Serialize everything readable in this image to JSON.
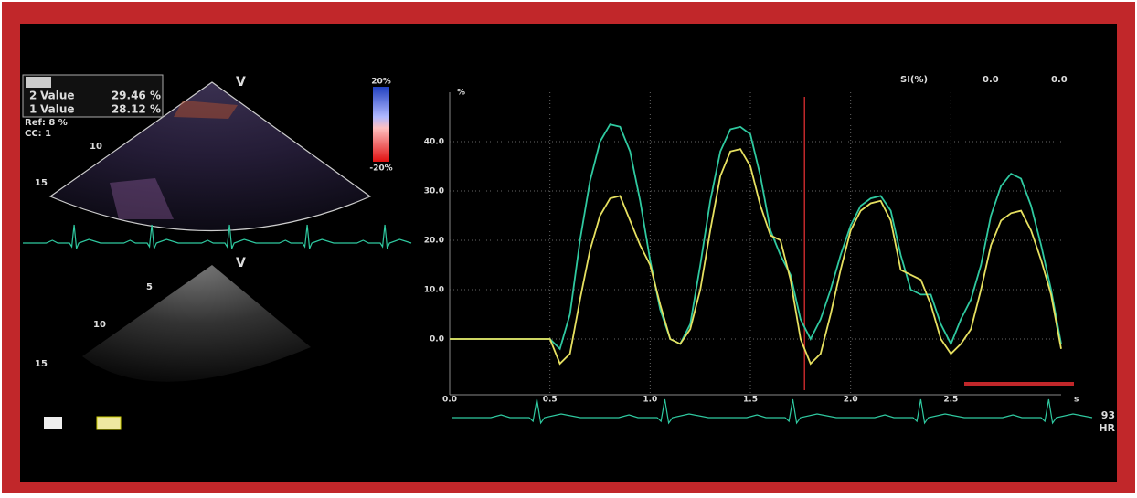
{
  "chart_data": {
    "type": "line",
    "y_label": "%",
    "x_label": "s",
    "legend_title": "SI(%)",
    "readouts": [
      "0.0",
      "0.0"
    ],
    "x": [
      0,
      0.5,
      0.55,
      0.6,
      0.65,
      0.7,
      0.75,
      0.8,
      0.85,
      0.9,
      0.95,
      1.0,
      1.05,
      1.1,
      1.15,
      1.2,
      1.25,
      1.3,
      1.35,
      1.4,
      1.45,
      1.5,
      1.55,
      1.6,
      1.65,
      1.7,
      1.75,
      1.8,
      1.85,
      1.9,
      1.95,
      2.0,
      2.05,
      2.1,
      2.15,
      2.2,
      2.25,
      2.3,
      2.35,
      2.4,
      2.45,
      2.5,
      2.55,
      2.6,
      2.65,
      2.7,
      2.75,
      2.8,
      2.85,
      2.9,
      2.95,
      3.0,
      3.05
    ],
    "series": [
      {
        "color": "#2fc9a0",
        "values": [
          0,
          0,
          -2,
          5,
          20,
          32,
          40,
          43.5,
          43,
          38,
          28,
          16,
          6,
          0,
          -1,
          3,
          15,
          28,
          38,
          42.5,
          43,
          41.5,
          33,
          22,
          17,
          13,
          4,
          0,
          4,
          10,
          17,
          23,
          27,
          28.5,
          29,
          26,
          17,
          10,
          9,
          9,
          3,
          -1,
          4,
          8,
          15,
          25,
          31,
          33.5,
          32.5,
          27,
          19,
          10,
          -1
        ]
      },
      {
        "color": "#e6e060",
        "values": [
          0,
          0,
          -5,
          -3,
          8,
          18,
          25,
          28.5,
          29,
          24,
          19,
          15,
          7,
          0,
          -1,
          2,
          10,
          22,
          33,
          38,
          38.5,
          35,
          27,
          21,
          20,
          12,
          0,
          -5,
          -3,
          5,
          14,
          22,
          26,
          27.5,
          28,
          24,
          14,
          13,
          12,
          7,
          0,
          -3,
          -1,
          2,
          10,
          19,
          24,
          25.5,
          26,
          22,
          16,
          9,
          -2
        ]
      }
    ],
    "xlim": [
      0,
      3.05
    ],
    "ylim": [
      -11.3,
      50
    ],
    "xticks": [
      {
        "value": 0,
        "label": "0.0"
      },
      {
        "value": 0.5,
        "label": "0.5"
      },
      {
        "value": 1,
        "label": "1.0"
      },
      {
        "value": 1.5,
        "label": "1.5"
      },
      {
        "value": 2,
        "label": "2.0"
      },
      {
        "value": 2.5,
        "label": "2.5"
      }
    ],
    "yticks": [
      {
        "value": 0,
        "label": "0.0"
      },
      {
        "value": 10,
        "label": "10.0"
      },
      {
        "value": 20,
        "label": "20.0"
      },
      {
        "value": 30,
        "label": "30.0"
      },
      {
        "value": 40,
        "label": "40.0"
      }
    ],
    "cursor_x": 1.77,
    "cursor_color": "#c0282a",
    "grid": true
  },
  "panel": {
    "roi_rows": [
      {
        "index": "2",
        "label": "Value",
        "value": "29.46 %"
      },
      {
        "index": "1",
        "label": "Value",
        "value": "28.12 %"
      }
    ],
    "ref": "Ref: 8 %",
    "cc": "CC: 1",
    "colorbar": [
      "20%",
      "-20%"
    ],
    "apex_labels": [
      "V",
      "V"
    ],
    "depth_top": [
      "10",
      "15"
    ],
    "depth_bottom": [
      "5",
      "10",
      "15"
    ],
    "hr_value": "93",
    "hr_label": "HR"
  }
}
